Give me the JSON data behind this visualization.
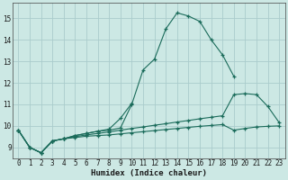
{
  "xlabel": "Humidex (Indice chaleur)",
  "bg_color": "#cce8e4",
  "grid_color": "#aacccc",
  "line_color": "#1a6b5a",
  "xlim": [
    -0.5,
    23.5
  ],
  "ylim": [
    8.5,
    15.7
  ],
  "xticks": [
    0,
    1,
    2,
    3,
    4,
    5,
    6,
    7,
    8,
    9,
    10,
    11,
    12,
    13,
    14,
    15,
    16,
    17,
    18,
    19,
    20,
    21,
    22,
    23
  ],
  "yticks": [
    9,
    10,
    11,
    12,
    13,
    14,
    15
  ],
  "series0_x": [
    0,
    1,
    2,
    3,
    4,
    5,
    6,
    7,
    8,
    9,
    10,
    11,
    12,
    13,
    14,
    15,
    16,
    17,
    18,
    19
  ],
  "series0_y": [
    9.8,
    9.0,
    8.75,
    9.3,
    9.4,
    9.55,
    9.65,
    9.75,
    9.8,
    9.9,
    11.0,
    12.6,
    13.1,
    14.5,
    15.25,
    15.1,
    14.85,
    14.0,
    13.3,
    12.3
  ],
  "series1_x": [
    0,
    1,
    2,
    3,
    4,
    5,
    6,
    7,
    8,
    9,
    10
  ],
  "series1_y": [
    9.8,
    9.0,
    8.75,
    9.3,
    9.4,
    9.55,
    9.65,
    9.75,
    9.85,
    10.35,
    11.05
  ],
  "series2_x": [
    0,
    1,
    2,
    3,
    4,
    5,
    6,
    7,
    8,
    9,
    10,
    11,
    12,
    13,
    14,
    15,
    16,
    17,
    18,
    19,
    20,
    21,
    22,
    23
  ],
  "series2_y": [
    9.8,
    9.0,
    8.75,
    9.3,
    9.4,
    9.5,
    9.58,
    9.65,
    9.72,
    9.8,
    9.88,
    9.95,
    10.03,
    10.1,
    10.18,
    10.25,
    10.33,
    10.4,
    10.47,
    11.45,
    11.5,
    11.45,
    10.9,
    10.15
  ],
  "series3_x": [
    0,
    1,
    2,
    3,
    4,
    5,
    6,
    7,
    8,
    9,
    10,
    11,
    12,
    13,
    14,
    15,
    16,
    17,
    18,
    19,
    20,
    21,
    22,
    23
  ],
  "series3_y": [
    9.8,
    9.0,
    8.75,
    9.3,
    9.4,
    9.46,
    9.52,
    9.55,
    9.58,
    9.63,
    9.68,
    9.73,
    9.78,
    9.83,
    9.88,
    9.93,
    9.98,
    10.02,
    10.06,
    9.8,
    9.88,
    9.95,
    9.98,
    10.0
  ]
}
